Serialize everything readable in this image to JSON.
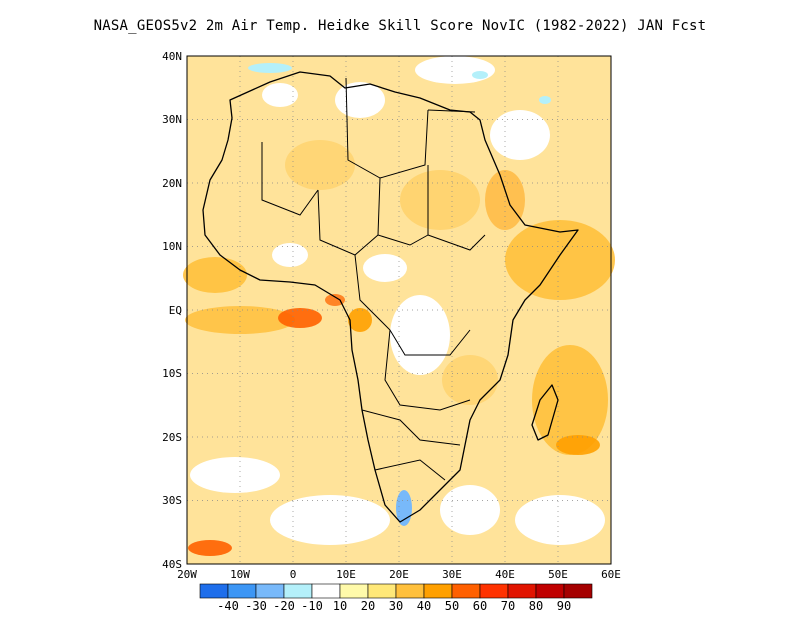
{
  "title": "NASA_GEOS5v2  2m Air Temp. Heidke Skill Score NovIC (1982-2022) JAN Fcst",
  "map": {
    "lat_labels": [
      "40N",
      "30N",
      "20N",
      "10N",
      "EQ",
      "10S",
      "20S",
      "30S",
      "40S"
    ],
    "lon_labels": [
      "20W",
      "10W",
      "0",
      "10E",
      "20E",
      "30E",
      "40E",
      "50E",
      "60E"
    ],
    "lat_range": [
      -40,
      40
    ],
    "lon_range": [
      -20,
      60
    ],
    "grid": "dotted"
  },
  "colorbar": {
    "labels": [
      "-40",
      "-30",
      "-20",
      "-10",
      "10",
      "20",
      "30",
      "40",
      "50",
      "60",
      "70",
      "80",
      "90"
    ],
    "colors": [
      "#1e6eeb",
      "#3c96f5",
      "#78b9fa",
      "#b4f0fa",
      "#ffffff",
      "#fffaaa",
      "#ffe878",
      "#ffc03c",
      "#ffa000",
      "#ff6000",
      "#ff3200",
      "#e11400",
      "#c00000",
      "#a50000"
    ]
  }
}
